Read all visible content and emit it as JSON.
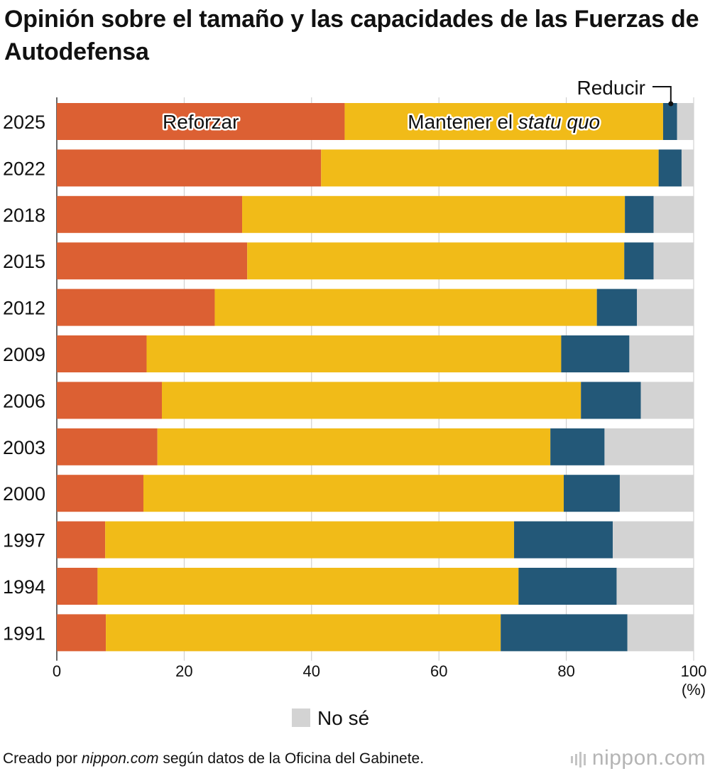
{
  "title": "Opinión sobre el tamaño y las capacidades de las Fuerzas de Autodefensa",
  "footer": {
    "prefix": "Creado por ",
    "source": "nippon.com",
    "suffix": " según datos de la Oficina del Gabinete."
  },
  "logo": {
    "text": "nippon.com"
  },
  "chart_data": {
    "type": "bar",
    "orientation": "horizontal",
    "stacked": true,
    "title": "Opinión sobre el tamaño y las capacidades de las Fuerzas de Autodefensa",
    "xlabel": "(%)",
    "ylabel": "",
    "xlim": [
      0,
      100
    ],
    "x_ticks": [
      "0",
      "20",
      "40",
      "60",
      "80",
      "100"
    ],
    "categories": [
      "2025",
      "2022",
      "2018",
      "2015",
      "2012",
      "2009",
      "2006",
      "2003",
      "2000",
      "1997",
      "1994",
      "1991"
    ],
    "series": [
      {
        "name": "Reforzar",
        "color": "#dc6033",
        "values": [
          45.2,
          41.5,
          29.1,
          29.9,
          24.8,
          14.1,
          16.5,
          15.8,
          13.6,
          7.6,
          6.4,
          7.7
        ]
      },
      {
        "name": "Mantener el statu quo",
        "name_prefix": "Mantener el ",
        "name_italic": "statu quo",
        "color": "#f1bb18",
        "values": [
          50.0,
          53.0,
          60.1,
          59.2,
          60.0,
          65.1,
          65.8,
          61.7,
          66.0,
          64.2,
          66.1,
          62.0
        ]
      },
      {
        "name": "Reducir",
        "color": "#235878",
        "values": [
          2.2,
          3.6,
          4.5,
          4.6,
          6.3,
          10.7,
          9.4,
          8.5,
          8.8,
          15.5,
          15.4,
          19.9
        ]
      },
      {
        "name": "No sé",
        "color": "#d3d3d3",
        "values": [
          2.6,
          1.9,
          6.3,
          6.3,
          8.9,
          10.1,
          8.3,
          14.0,
          11.6,
          12.7,
          12.1,
          10.4
        ]
      }
    ],
    "legend": [
      "No sé"
    ],
    "grid": true
  }
}
